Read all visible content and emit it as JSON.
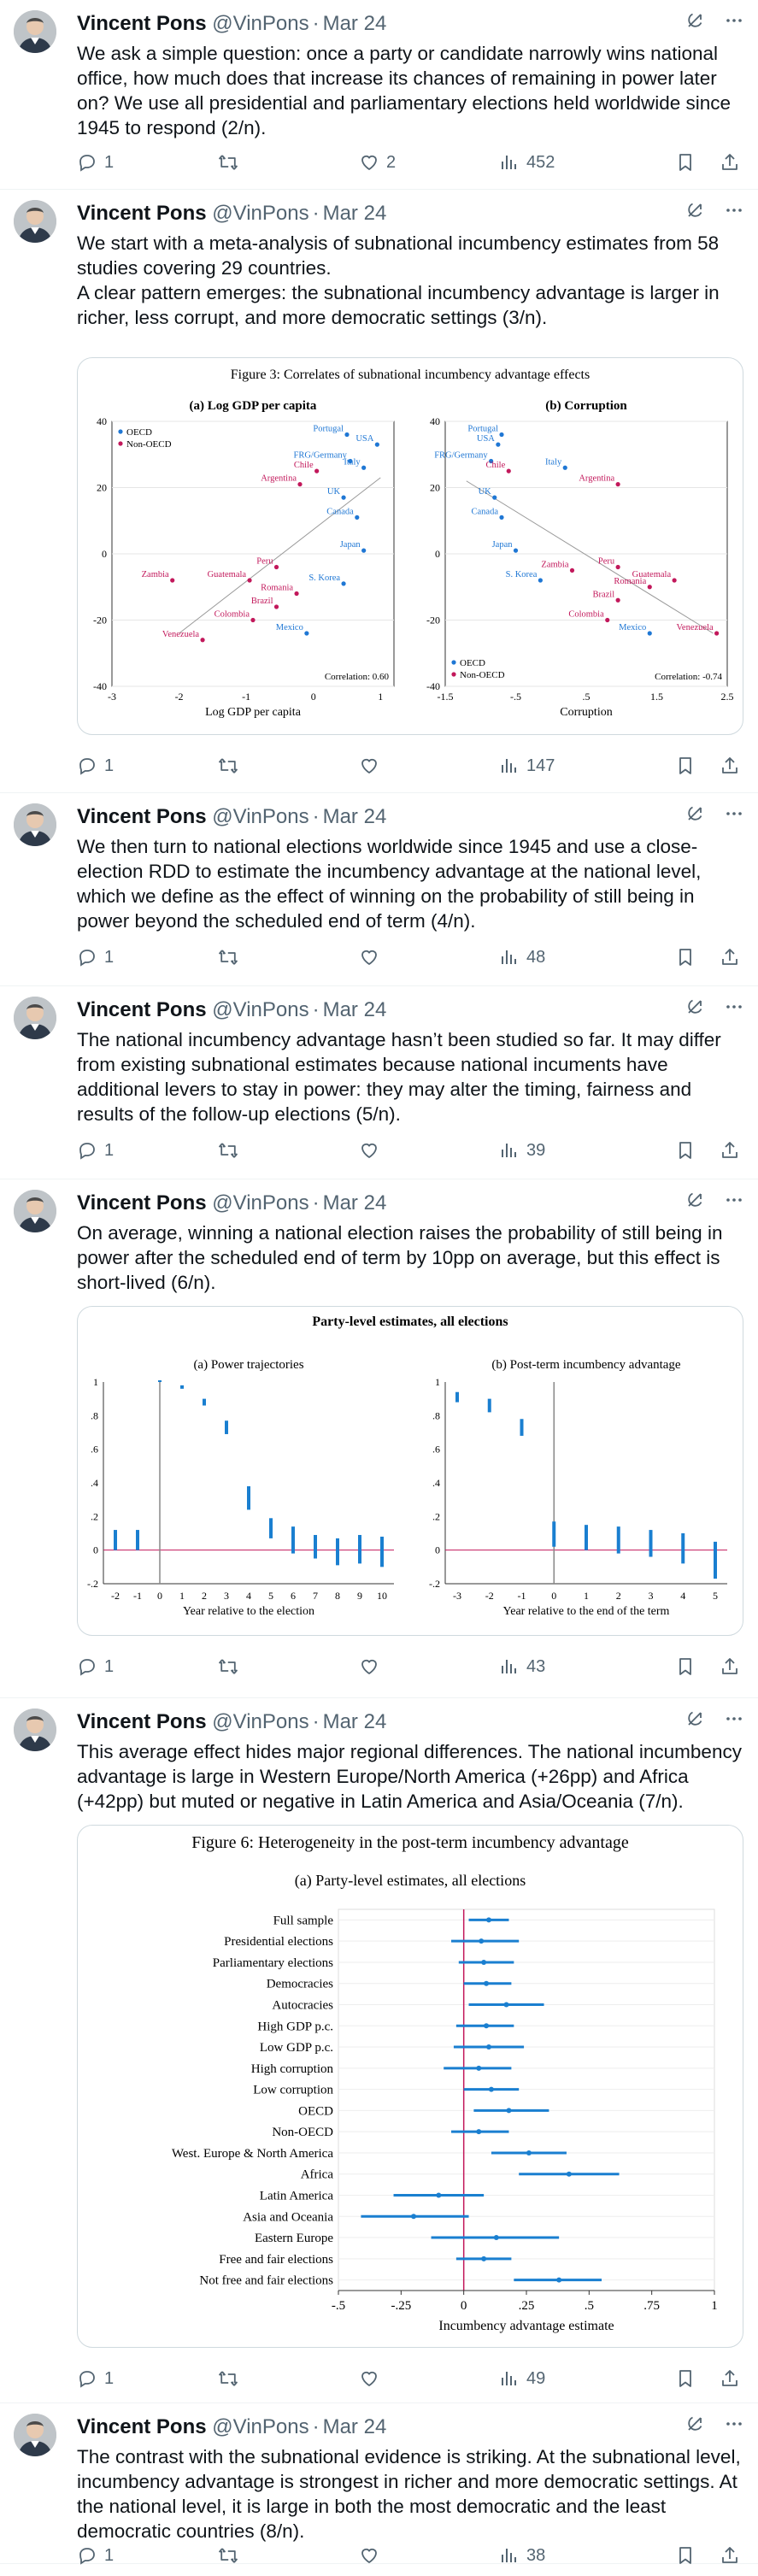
{
  "author": {
    "name": "Vincent Pons",
    "handle": "@VinPons",
    "date": "Mar 24",
    "sep": "·"
  },
  "tweets": [
    {
      "text": "We ask a simple question: once a party or candidate narrowly wins national office, how much does that increase its chances of remaining in power later on? We use all presidential and parliamentary elections held worldwide since 1945 to respond (2/n).",
      "replies": "1",
      "reposts": "",
      "likes": "2",
      "views": "452"
    },
    {
      "text": "We start with a meta-analysis of subnational incumbency estimates from 58 studies covering 29 countries.\nA clear pattern emerges: the subnational incumbency advantage is larger in richer, less corrupt, and more democratic settings (3/n).",
      "replies": "1",
      "reposts": "",
      "likes": "",
      "views": "147"
    },
    {
      "text": "We then turn to national elections worldwide since 1945 and use a close-election RDD to estimate the incumbency advantage at the national level, which we define as the effect of winning on the probability of still being in power beyond the scheduled end of term (4/n).",
      "replies": "1",
      "reposts": "",
      "likes": "",
      "views": "48"
    },
    {
      "text": "The national incumbency advantage hasn’t been studied so far. It may differ from existing subnational estimates because national incuments have additional levers to stay in power: they may alter the timing, fairness and results of the follow-up elections (5/n).",
      "replies": "1",
      "reposts": "",
      "likes": "",
      "views": "39"
    },
    {
      "text": "On average, winning a national election raises the probability of still being in power after the scheduled end of term by 10pp on average, but this effect is short-lived (6/n).",
      "replies": "1",
      "reposts": "",
      "likes": "",
      "views": "43"
    },
    {
      "text": "This average effect hides major regional differences. The national incumbency advantage is large in Western Europe/North America (+26pp) and Africa (+42pp) but muted or negative in Latin America and Asia/Oceania (7/n).",
      "replies": "1",
      "reposts": "",
      "likes": "",
      "views": "49"
    },
    {
      "text": "The contrast with the subnational evidence is striking. At the subnational level, incumbency advantage is strongest in richer and more democratic settings. At the national level, it is large in both the most democratic and the least democratic countries (8/n).",
      "replies": "1",
      "reposts": "",
      "likes": "",
      "views": "38"
    }
  ],
  "icons": [
    "grok-icon",
    "more-icon",
    "reply-icon",
    "repost-icon",
    "like-icon",
    "views-icon",
    "bookmark-icon",
    "share-icon"
  ],
  "colors": {
    "oecd": "#1f77d4",
    "non_oecd": "#c2185b",
    "estimate": "#1a7fd0",
    "zero_line": "#c2185b",
    "text_secondary": "#536471"
  },
  "chart_data": [
    {
      "type": "scatter",
      "title": "Figure 3: Correlates of subnational incumbency advantage effects",
      "panel": "(a) Log GDP per capita",
      "xlabel": "Log GDP per capita",
      "ylabel": "",
      "xlim": [
        -3,
        1.2
      ],
      "ylim": [
        -40,
        40
      ],
      "xticks": [
        "-3",
        "-2",
        "-1",
        "0",
        "1"
      ],
      "yticks": [
        "40",
        "20",
        "0",
        "-20",
        "-40"
      ],
      "legend": [
        "OECD",
        "Non-OECD"
      ],
      "legend_position": "top-left",
      "annotation": "Correlation: 0.60",
      "fit_line": [
        [
          -2,
          -24
        ],
        [
          1,
          23
        ]
      ],
      "points": [
        {
          "label": "Portugal",
          "x": 0.5,
          "y": 36,
          "group": "OECD"
        },
        {
          "label": "USA",
          "x": 0.95,
          "y": 33,
          "group": "OECD"
        },
        {
          "label": "FRG/Germany",
          "x": 0.55,
          "y": 28,
          "group": "OECD"
        },
        {
          "label": "Italy",
          "x": 0.75,
          "y": 26,
          "group": "OECD"
        },
        {
          "label": "Chile",
          "x": 0.05,
          "y": 25,
          "group": "Non-OECD"
        },
        {
          "label": "Argentina",
          "x": -0.2,
          "y": 21,
          "group": "Non-OECD"
        },
        {
          "label": "UK",
          "x": 0.45,
          "y": 17,
          "group": "OECD"
        },
        {
          "label": "Canada",
          "x": 0.65,
          "y": 11,
          "group": "OECD"
        },
        {
          "label": "Japan",
          "x": 0.75,
          "y": 1,
          "group": "OECD"
        },
        {
          "label": "Zambia",
          "x": -2.1,
          "y": -8,
          "group": "Non-OECD"
        },
        {
          "label": "Guatemala",
          "x": -0.95,
          "y": -8,
          "group": "Non-OECD"
        },
        {
          "label": "Peru",
          "x": -0.55,
          "y": -4,
          "group": "Non-OECD"
        },
        {
          "label": "Romania",
          "x": -0.25,
          "y": -12,
          "group": "Non-OECD"
        },
        {
          "label": "S. Korea",
          "x": 0.45,
          "y": -9,
          "group": "OECD"
        },
        {
          "label": "Brazil",
          "x": -0.55,
          "y": -16,
          "group": "Non-OECD"
        },
        {
          "label": "Colombia",
          "x": -0.9,
          "y": -20,
          "group": "Non-OECD"
        },
        {
          "label": "Venezuela",
          "x": -1.65,
          "y": -26,
          "group": "Non-OECD"
        },
        {
          "label": "Mexico",
          "x": -0.1,
          "y": -24,
          "group": "OECD"
        }
      ]
    },
    {
      "type": "scatter",
      "panel": "(b) Corruption",
      "xlabel": "Corruption",
      "ylabel": "",
      "xlim": [
        -1.5,
        2.5
      ],
      "ylim": [
        -40,
        40
      ],
      "xticks": [
        "-1.5",
        "-.5",
        ".5",
        "1.5",
        "2.5"
      ],
      "yticks": [
        "40",
        "20",
        "0",
        "-20",
        "-40"
      ],
      "legend": [
        "OECD",
        "Non-OECD"
      ],
      "legend_position": "bottom-left",
      "annotation": "Correlation: -0.74",
      "fit_line": [
        [
          -1.2,
          22
        ],
        [
          2.3,
          -24
        ]
      ],
      "points": [
        {
          "label": "Portugal",
          "x": -0.7,
          "y": 36,
          "group": "OECD"
        },
        {
          "label": "USA",
          "x": -0.75,
          "y": 33,
          "group": "OECD"
        },
        {
          "label": "FRG/Germany",
          "x": -0.85,
          "y": 28,
          "group": "OECD"
        },
        {
          "label": "Italy",
          "x": 0.2,
          "y": 26,
          "group": "OECD"
        },
        {
          "label": "Chile",
          "x": -0.6,
          "y": 25,
          "group": "Non-OECD"
        },
        {
          "label": "Argentina",
          "x": 0.95,
          "y": 21,
          "group": "Non-OECD"
        },
        {
          "label": "UK",
          "x": -0.8,
          "y": 17,
          "group": "OECD"
        },
        {
          "label": "Canada",
          "x": -0.7,
          "y": 11,
          "group": "OECD"
        },
        {
          "label": "Japan",
          "x": -0.5,
          "y": 1,
          "group": "OECD"
        },
        {
          "label": "Zambia",
          "x": 0.3,
          "y": -5,
          "group": "Non-OECD"
        },
        {
          "label": "S. Korea",
          "x": -0.15,
          "y": -8,
          "group": "OECD"
        },
        {
          "label": "Peru",
          "x": 0.95,
          "y": -4,
          "group": "Non-OECD"
        },
        {
          "label": "Guatemala",
          "x": 1.75,
          "y": -8,
          "group": "Non-OECD"
        },
        {
          "label": "Romania",
          "x": 1.4,
          "y": -10,
          "group": "Non-OECD"
        },
        {
          "label": "Brazil",
          "x": 0.95,
          "y": -14,
          "group": "Non-OECD"
        },
        {
          "label": "Colombia",
          "x": 0.8,
          "y": -20,
          "group": "Non-OECD"
        },
        {
          "label": "Mexico",
          "x": 1.4,
          "y": -24,
          "group": "OECD"
        },
        {
          "label": "Venezuela",
          "x": 2.35,
          "y": -24,
          "group": "Non-OECD"
        }
      ]
    },
    {
      "type": "scatter",
      "title": "Party-level estimates, all elections",
      "panel": "(a) Power trajectories",
      "xlabel": "Year relative to the election",
      "ylabel": "",
      "xlim": [
        -2,
        10
      ],
      "ylim": [
        -0.2,
        1
      ],
      "xticks": [
        "-2",
        "-1",
        "0",
        "1",
        "2",
        "3",
        "4",
        "5",
        "6",
        "7",
        "8",
        "9",
        "10"
      ],
      "yticks": [
        "1",
        ".8",
        ".6",
        ".4",
        ".2",
        "0",
        "-.2"
      ],
      "estimates": [
        {
          "x": -2,
          "lo": 0.0,
          "hi": 0.12
        },
        {
          "x": -1,
          "lo": 0.0,
          "hi": 0.12
        },
        {
          "x": 0,
          "lo": 1.0,
          "hi": 1.0
        },
        {
          "x": 1,
          "lo": 0.96,
          "hi": 0.98
        },
        {
          "x": 2,
          "lo": 0.86,
          "hi": 0.9
        },
        {
          "x": 3,
          "lo": 0.69,
          "hi": 0.77
        },
        {
          "x": 4,
          "lo": 0.24,
          "hi": 0.38
        },
        {
          "x": 5,
          "lo": 0.07,
          "hi": 0.19
        },
        {
          "x": 6,
          "lo": -0.02,
          "hi": 0.14
        },
        {
          "x": 7,
          "lo": -0.05,
          "hi": 0.09
        },
        {
          "x": 8,
          "lo": -0.09,
          "hi": 0.07
        },
        {
          "x": 9,
          "lo": -0.08,
          "hi": 0.09
        },
        {
          "x": 10,
          "lo": -0.1,
          "hi": 0.08
        }
      ]
    },
    {
      "type": "scatter",
      "panel": "(b) Post-term incumbency advantage",
      "xlabel": "Year relative to the end of the term",
      "ylabel": "",
      "xlim": [
        -3,
        5
      ],
      "ylim": [
        -0.2,
        1
      ],
      "xticks": [
        "-3",
        "-2",
        "-1",
        "0",
        "1",
        "2",
        "3",
        "4",
        "5"
      ],
      "yticks": [
        "1",
        ".8",
        ".6",
        ".4",
        ".2",
        "0",
        "-.2"
      ],
      "estimates": [
        {
          "x": -3,
          "lo": 0.88,
          "hi": 0.94
        },
        {
          "x": -2,
          "lo": 0.82,
          "hi": 0.9
        },
        {
          "x": -1,
          "lo": 0.68,
          "hi": 0.78
        },
        {
          "x": 0,
          "lo": 0.02,
          "hi": 0.17
        },
        {
          "x": 1,
          "lo": 0.0,
          "hi": 0.15
        },
        {
          "x": 2,
          "lo": -0.02,
          "hi": 0.14
        },
        {
          "x": 3,
          "lo": -0.04,
          "hi": 0.12
        },
        {
          "x": 4,
          "lo": -0.08,
          "hi": 0.1
        },
        {
          "x": 5,
          "lo": -0.17,
          "hi": 0.05
        }
      ]
    },
    {
      "type": "scatter",
      "title": "Figure 6: Heterogeneity in the post-term incumbency advantage",
      "panel": "(a) Party-level estimates, all elections",
      "xlabel": "Incumbency advantage estimate",
      "ylabel": "",
      "xlim": [
        -0.5,
        1
      ],
      "xticks": [
        "-.5",
        "-.25",
        "0",
        ".25",
        ".5",
        ".75",
        "1"
      ],
      "rows": [
        {
          "label": "Full sample",
          "point": 0.1,
          "lo": 0.02,
          "hi": 0.18
        },
        {
          "label": "Presidential elections",
          "point": 0.07,
          "lo": -0.05,
          "hi": 0.22
        },
        {
          "label": "Parliamentary elections",
          "point": 0.08,
          "lo": -0.02,
          "hi": 0.2
        },
        {
          "label": "Democracies",
          "point": 0.09,
          "lo": 0.0,
          "hi": 0.19
        },
        {
          "label": "Autocracies",
          "point": 0.17,
          "lo": 0.02,
          "hi": 0.32
        },
        {
          "label": "High GDP p.c.",
          "point": 0.09,
          "lo": -0.03,
          "hi": 0.2
        },
        {
          "label": "Low GDP p.c.",
          "point": 0.1,
          "lo": -0.04,
          "hi": 0.24
        },
        {
          "label": "High corruption",
          "point": 0.06,
          "lo": -0.08,
          "hi": 0.19
        },
        {
          "label": "Low corruption",
          "point": 0.11,
          "lo": 0.0,
          "hi": 0.22
        },
        {
          "label": "OECD",
          "point": 0.18,
          "lo": 0.04,
          "hi": 0.34
        },
        {
          "label": "Non-OECD",
          "point": 0.06,
          "lo": -0.05,
          "hi": 0.18
        },
        {
          "label": "West. Europe & North America",
          "point": 0.26,
          "lo": 0.11,
          "hi": 0.41
        },
        {
          "label": "Africa",
          "point": 0.42,
          "lo": 0.22,
          "hi": 0.62
        },
        {
          "label": "Latin America",
          "point": -0.1,
          "lo": -0.28,
          "hi": 0.08
        },
        {
          "label": "Asia and Oceania",
          "point": -0.2,
          "lo": -0.41,
          "hi": 0.02
        },
        {
          "label": "Eastern Europe",
          "point": 0.13,
          "lo": -0.13,
          "hi": 0.38
        },
        {
          "label": "Free and fair elections",
          "point": 0.08,
          "lo": -0.03,
          "hi": 0.19
        },
        {
          "label": "Not free and fair elections",
          "point": 0.38,
          "lo": 0.2,
          "hi": 0.55
        }
      ]
    }
  ]
}
